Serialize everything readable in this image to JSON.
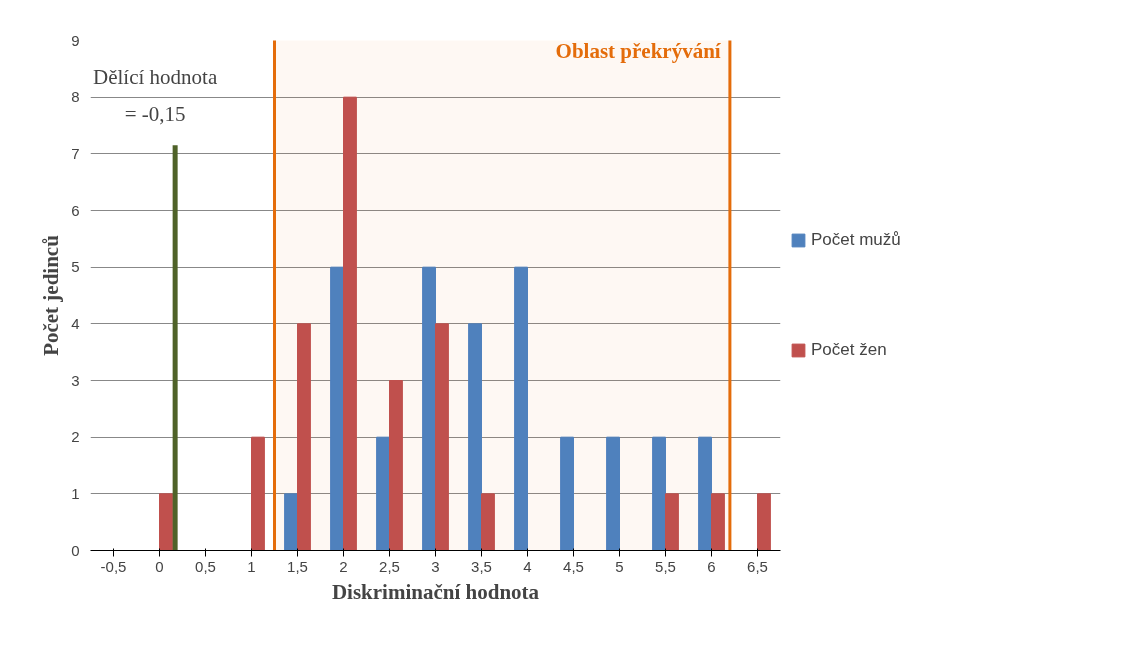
{
  "chart_data": {
    "type": "bar",
    "xlabel": "Diskriminační hodnota",
    "ylabel": "Počet jedinců",
    "x": [
      -0.5,
      0,
      0.5,
      1,
      1.5,
      2,
      2.5,
      3,
      3.5,
      4,
      4.5,
      5,
      5.5,
      6,
      6.5
    ],
    "series": [
      {
        "name": "Počet mužů",
        "color": "#4f81bd",
        "values": [
          0,
          0,
          0,
          0,
          1,
          5,
          2,
          5,
          4,
          5,
          2,
          2,
          2,
          2,
          0
        ]
      },
      {
        "name": "Počet žen",
        "color": "#c0504d",
        "values": [
          0,
          1,
          0,
          2,
          4,
          8,
          3,
          4,
          1,
          0,
          0,
          0,
          1,
          1,
          1
        ]
      },
      {
        "type": "line",
        "color": "#4f6228",
        "x": [
          0.17,
          0.17
        ],
        "values": [
          0,
          7.15
        ]
      }
    ],
    "xlim": [
      -0.75,
      6.75
    ],
    "xticks": [
      {
        "value": -0.5,
        "label": "-0,5"
      },
      0,
      {
        "value": 0.5,
        "label": "0,5"
      },
      1,
      {
        "value": 1.5,
        "label": "1,5"
      },
      2,
      {
        "value": 2.5,
        "label": "2,5"
      },
      3,
      {
        "value": 3.5,
        "label": "3,5"
      },
      4,
      {
        "value": 4.5,
        "label": "4,5"
      },
      5,
      {
        "value": 5.5,
        "label": "5,5"
      },
      6,
      {
        "value": 6.5,
        "label": "6,5"
      }
    ],
    "ylim": [
      0,
      9
    ],
    "yticks": [
      0,
      1,
      2,
      3,
      4,
      5,
      6,
      7,
      8,
      9
    ],
    "annotations": [
      {
        "text": "Dělící hodnota\n= -0,15",
        "x": 0.17,
        "y": 7.15
      }
    ],
    "bands": [
      {
        "axis": "x",
        "from": 1.25,
        "to": 6.2,
        "label": "Oblast překrývání",
        "color": "#e46c0a"
      }
    ],
    "grid": "y",
    "legend": "right"
  }
}
